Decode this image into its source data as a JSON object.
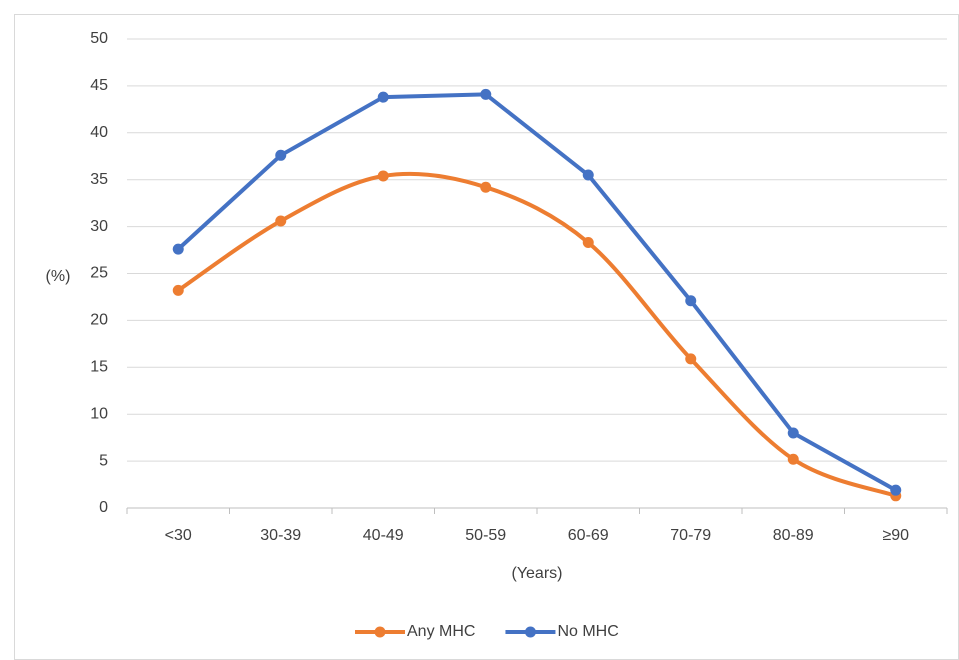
{
  "chart_data": {
    "type": "line",
    "categories": [
      "<30",
      "30-39",
      "40-49",
      "50-59",
      "60-69",
      "70-79",
      "80-89",
      "≥90"
    ],
    "series": [
      {
        "name": "Any MHC",
        "color": "#ed7d31",
        "smooth": true,
        "values": [
          23.2,
          30.6,
          35.4,
          34.2,
          28.3,
          15.9,
          5.2,
          1.3
        ]
      },
      {
        "name": "No MHC",
        "color": "#4472c4",
        "smooth": false,
        "values": [
          27.6,
          37.6,
          43.8,
          44.1,
          35.5,
          22.1,
          8.0,
          1.9
        ]
      }
    ],
    "y_label": "(%)",
    "x_label": "(Years)",
    "ylim": [
      0,
      50
    ],
    "yticks": [
      0,
      5,
      10,
      15,
      20,
      25,
      30,
      35,
      40,
      45,
      50
    ],
    "grid": true,
    "legend": "bottom"
  }
}
